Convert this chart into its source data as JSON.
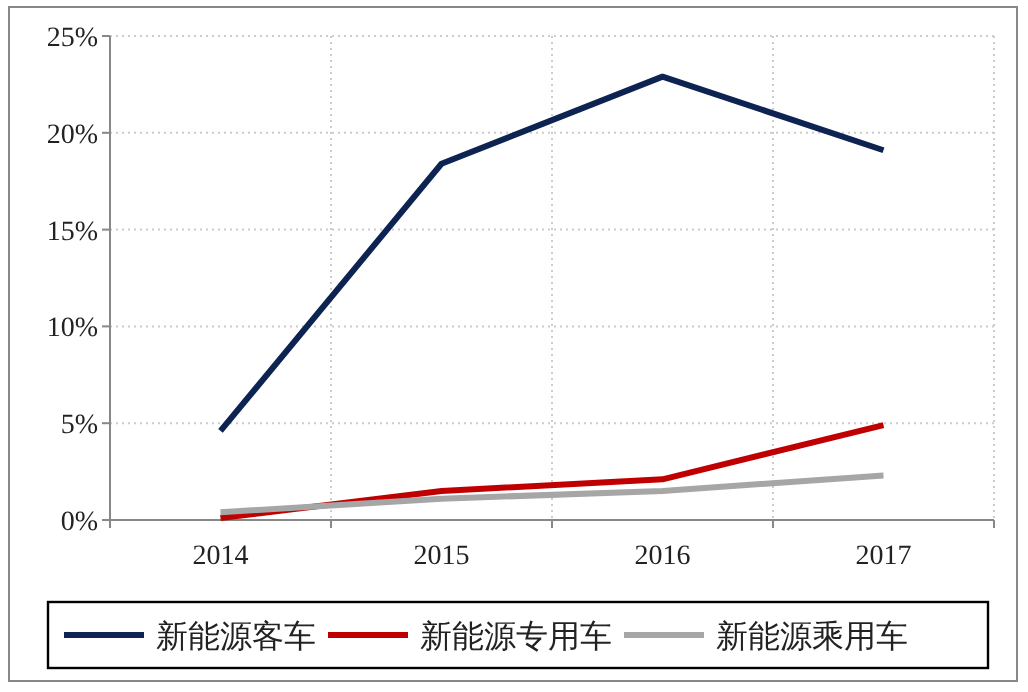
{
  "chart_data": {
    "type": "line",
    "categories": [
      "2014",
      "2015",
      "2016",
      "2017"
    ],
    "series": [
      {
        "name": "新能源客车",
        "color": "#0d2452",
        "values": [
          4.6,
          18.4,
          22.9,
          19.1
        ]
      },
      {
        "name": "新能源专用车",
        "color": "#c00000",
        "values": [
          0.1,
          1.5,
          2.1,
          4.9
        ]
      },
      {
        "name": "新能源乘用车",
        "color": "#a6a6a6",
        "values": [
          0.4,
          1.1,
          1.5,
          2.3
        ]
      }
    ],
    "ylim": [
      0,
      25
    ],
    "yticks": [
      {
        "value": 0,
        "label": "0%"
      },
      {
        "value": 5,
        "label": "5%"
      },
      {
        "value": 10,
        "label": "10%"
      },
      {
        "value": 15,
        "label": "15%"
      },
      {
        "value": 20,
        "label": "20%"
      },
      {
        "value": 25,
        "label": "25%"
      }
    ],
    "grid": true,
    "legend": "bottom",
    "marker": "none",
    "line_style": "solid"
  }
}
